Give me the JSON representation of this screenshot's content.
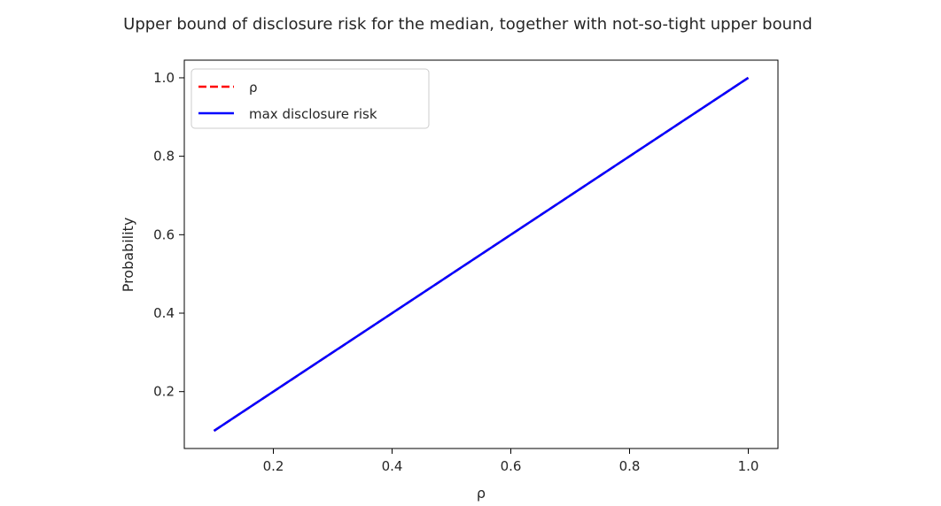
{
  "chart_data": {
    "type": "line",
    "title": "Upper bound of disclosure risk for the median, together with not-so-tight upper bound",
    "xlabel": "ρ",
    "ylabel": "Probability",
    "xlim": [
      0.05,
      1.05
    ],
    "ylim": [
      0.055,
      1.045
    ],
    "xticks": [
      0.2,
      0.4,
      0.6,
      0.8,
      1.0
    ],
    "xtick_labels": [
      "0.2",
      "0.4",
      "0.6",
      "0.8",
      "1.0"
    ],
    "yticks": [
      0.2,
      0.4,
      0.6,
      0.8,
      1.0
    ],
    "ytick_labels": [
      "0.2",
      "0.4",
      "0.6",
      "0.8",
      "1.0"
    ],
    "grid": false,
    "legend_position": "top-left",
    "series": [
      {
        "name": "ρ",
        "style": "dashed",
        "color": "#ff0000",
        "x": [
          0.1,
          1.0
        ],
        "y": [
          0.1,
          1.0
        ]
      },
      {
        "name": "max disclosure risk",
        "style": "solid",
        "color": "#0000ff",
        "x": [
          0.1,
          1.0
        ],
        "y": [
          0.1,
          1.0
        ]
      }
    ]
  }
}
